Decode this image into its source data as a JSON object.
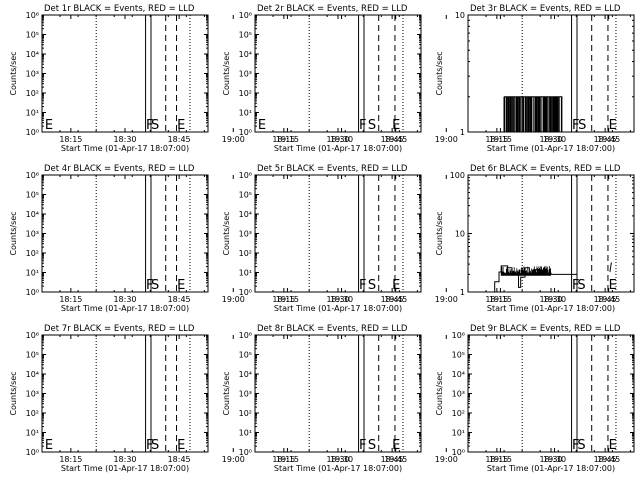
{
  "chart_data": [
    {
      "type": "line",
      "title": "Det 1r BLACK = Events, RED = LLD",
      "ylabel": "Counts/sec",
      "xlabel": "Start Time (01-Apr-17 18:07:00)",
      "yscale": "log",
      "ylim": [
        1,
        1000000
      ],
      "ytick_labels": [
        "10⁰",
        "10¹",
        "10²",
        "10³",
        "10⁴",
        "10⁵",
        "10⁶"
      ],
      "xlim": [
        18.1167,
        18.8833
      ],
      "xtick_labels": [
        "18:15",
        "18:30",
        "18:45",
        "19:00",
        "19:15",
        "19:30",
        "19:45"
      ],
      "vlines": [
        {
          "style": "dotted",
          "x": 18.367
        },
        {
          "style": "solid",
          "x": 18.595
        },
        {
          "style": "solid",
          "x": 18.62
        },
        {
          "style": "dashed",
          "x": 18.688
        },
        {
          "style": "dashed",
          "x": 18.738
        },
        {
          "style": "dotted",
          "x": 18.8
        }
      ],
      "markers": [
        {
          "text": "E",
          "x": 18.13
        },
        {
          "text": "F",
          "x": 18.597
        },
        {
          "text": "S",
          "x": 18.62
        },
        {
          "text": "E",
          "x": 18.741
        }
      ],
      "series": []
    },
    {
      "type": "line",
      "title": "Det 2r BLACK = Events, RED = LLD",
      "ylabel": "Counts/sec",
      "xlabel": "Start Time (01-Apr-17 18:07:00)",
      "yscale": "log",
      "ylim": [
        1,
        1000000
      ],
      "ytick_labels": [
        "10⁰",
        "10¹",
        "10²",
        "10³",
        "10⁴",
        "10⁵",
        "10⁶"
      ],
      "xlim": [
        18.1167,
        18.8833
      ],
      "xtick_labels": [
        "18:15",
        "18:30",
        "18:45",
        "19:00",
        "19:15",
        "19:30",
        "19:45"
      ],
      "vlines": [
        {
          "style": "dotted",
          "x": 18.367
        },
        {
          "style": "solid",
          "x": 18.595
        },
        {
          "style": "solid",
          "x": 18.62
        },
        {
          "style": "dashed",
          "x": 18.688
        },
        {
          "style": "dashed",
          "x": 18.763
        },
        {
          "style": "dotted",
          "x": 18.8
        }
      ],
      "markers": [
        {
          "text": "E",
          "x": 18.13
        },
        {
          "text": "F",
          "x": 18.597
        },
        {
          "text": "S",
          "x": 18.638
        },
        {
          "text": "E",
          "x": 18.75
        }
      ],
      "series": []
    },
    {
      "type": "line",
      "title": "Det 3r BLACK = Events, RED = LLD",
      "ylabel": "Counts/sec",
      "xlabel": "Start Time (01-Apr-17 18:07:00)",
      "yscale": "log",
      "ylim": [
        1,
        10
      ],
      "ytick_labels": [
        "1",
        "10"
      ],
      "xlim": [
        18.1167,
        18.8833
      ],
      "xtick_labels": [
        "18:15",
        "18:30",
        "18:45",
        "19:00",
        "19:15",
        "19:30",
        "19:45"
      ],
      "vlines": [
        {
          "style": "dotted",
          "x": 18.367
        },
        {
          "style": "solid",
          "x": 18.595
        },
        {
          "style": "solid",
          "x": 18.62
        },
        {
          "style": "dashed",
          "x": 18.688
        },
        {
          "style": "dashed",
          "x": 18.763
        },
        {
          "style": "dotted",
          "x": 18.8
        }
      ],
      "markers": [
        {
          "text": "F",
          "x": 18.597
        },
        {
          "text": "S",
          "x": 18.625
        },
        {
          "text": "E",
          "x": 18.766
        }
      ],
      "series": [
        {
          "style": "noise",
          "x_range": [
            18.283,
            18.553
          ],
          "y_low": 1,
          "y_high": 2
        }
      ]
    },
    {
      "type": "line",
      "title": "Det 4r BLACK = Events, RED = LLD",
      "ylabel": "Counts/sec",
      "xlabel": "Start Time (01-Apr-17 18:07:00)",
      "yscale": "log",
      "ylim": [
        1,
        1000000
      ],
      "ytick_labels": [
        "10⁰",
        "10¹",
        "10²",
        "10³",
        "10⁴",
        "10⁵",
        "10⁶"
      ],
      "xlim": [
        18.1167,
        18.8833
      ],
      "xtick_labels": [
        "18:15",
        "18:30",
        "18:45",
        "19:00",
        "19:15",
        "19:30",
        "19:45"
      ],
      "vlines": [
        {
          "style": "dotted",
          "x": 18.367
        },
        {
          "style": "solid",
          "x": 18.595
        },
        {
          "style": "solid",
          "x": 18.62
        },
        {
          "style": "dashed",
          "x": 18.688
        },
        {
          "style": "dashed",
          "x": 18.738
        },
        {
          "style": "dotted",
          "x": 18.8
        }
      ],
      "markers": [
        {
          "text": "F",
          "x": 18.597
        },
        {
          "text": "S",
          "x": 18.62
        },
        {
          "text": "E",
          "x": 18.741
        }
      ],
      "series": []
    },
    {
      "type": "line",
      "title": "Det 5r BLACK = Events, RED = LLD",
      "ylabel": "Counts/sec",
      "xlabel": "Start Time (01-Apr-17 18:07:00)",
      "yscale": "log",
      "ylim": [
        1,
        1000000
      ],
      "ytick_labels": [
        "10⁰",
        "10¹",
        "10²",
        "10³",
        "10⁴",
        "10⁵",
        "10⁶"
      ],
      "xlim": [
        18.1167,
        18.8833
      ],
      "xtick_labels": [
        "18:15",
        "18:30",
        "18:45",
        "19:00",
        "19:15",
        "19:30",
        "19:45"
      ],
      "vlines": [
        {
          "style": "dotted",
          "x": 18.367
        },
        {
          "style": "solid",
          "x": 18.595
        },
        {
          "style": "solid",
          "x": 18.62
        },
        {
          "style": "dashed",
          "x": 18.688
        },
        {
          "style": "dashed",
          "x": 18.763
        },
        {
          "style": "dotted",
          "x": 18.8
        }
      ],
      "markers": [
        {
          "text": "F",
          "x": 18.597
        },
        {
          "text": "S",
          "x": 18.638
        },
        {
          "text": "E",
          "x": 18.75
        }
      ],
      "series": []
    },
    {
      "type": "line",
      "title": "Det 6r BLACK = Events, RED = LLD",
      "ylabel": "Counts/sec",
      "xlabel": "Start Time (01-Apr-17 18:07:00)",
      "yscale": "log",
      "ylim": [
        1,
        100
      ],
      "ytick_labels": [
        "1",
        "10",
        "100"
      ],
      "xlim": [
        18.1167,
        18.8833
      ],
      "xtick_labels": [
        "18:15",
        "18:30",
        "18:45",
        "19:00",
        "19:15",
        "19:30",
        "19:45"
      ],
      "vlines": [
        {
          "style": "dotted",
          "x": 18.367
        },
        {
          "style": "solid",
          "x": 18.595
        },
        {
          "style": "solid",
          "x": 18.62
        },
        {
          "style": "dashed",
          "x": 18.688
        },
        {
          "style": "dashed",
          "x": 18.763
        },
        {
          "style": "dotted",
          "x": 18.8
        }
      ],
      "markers": [
        {
          "text": "F",
          "x": 18.597
        },
        {
          "text": "S",
          "x": 18.622
        },
        {
          "text": "E",
          "x": 18.766
        }
      ],
      "series": [
        {
          "style": "steps",
          "x_range": [
            18.225,
            18.62
          ],
          "points": [
            [
              18.225,
              1
            ],
            [
              18.24,
              1.5
            ],
            [
              18.26,
              2.2
            ],
            [
              18.27,
              2.8
            ],
            [
              18.3,
              2.6
            ],
            [
              18.32,
              2.2
            ],
            [
              18.35,
              1.2
            ],
            [
              18.36,
              1.8
            ],
            [
              18.38,
              2.6
            ],
            [
              18.4,
              2.1
            ],
            [
              18.42,
              2.4
            ],
            [
              18.45,
              2.0
            ],
            [
              18.48,
              2.1
            ],
            [
              18.5,
              2.0
            ],
            [
              18.55,
              2.0
            ],
            [
              18.62,
              2.0
            ]
          ]
        },
        {
          "style": "tick",
          "x": 18.772,
          "y_low": 2.2,
          "y_high": 3.2
        }
      ]
    },
    {
      "type": "line",
      "title": "Det 7r BLACK = Events, RED = LLD",
      "ylabel": "Counts/sec",
      "xlabel": "Start Time (01-Apr-17 18:07:00)",
      "yscale": "log",
      "ylim": [
        1,
        1000000
      ],
      "ytick_labels": [
        "10⁰",
        "10¹",
        "10²",
        "10³",
        "10⁴",
        "10⁵",
        "10⁶"
      ],
      "xlim": [
        18.1167,
        18.8833
      ],
      "xtick_labels": [
        "18:15",
        "18:30",
        "18:45",
        "19:00",
        "19:15",
        "19:30",
        "19:45"
      ],
      "vlines": [
        {
          "style": "dotted",
          "x": 18.367
        },
        {
          "style": "solid",
          "x": 18.595
        },
        {
          "style": "solid",
          "x": 18.62
        },
        {
          "style": "dashed",
          "x": 18.688
        },
        {
          "style": "dashed",
          "x": 18.738
        },
        {
          "style": "dotted",
          "x": 18.8
        }
      ],
      "markers": [
        {
          "text": "E",
          "x": 18.13
        },
        {
          "text": "F",
          "x": 18.597
        },
        {
          "text": "S",
          "x": 18.62
        },
        {
          "text": "E",
          "x": 18.741
        }
      ],
      "series": []
    },
    {
      "type": "line",
      "title": "Det 8r BLACK = Events, RED = LLD",
      "ylabel": "Counts/sec",
      "xlabel": "Start Time (01-Apr-17 18:07:00)",
      "yscale": "log",
      "ylim": [
        1,
        1000000
      ],
      "ytick_labels": [
        "10⁰",
        "10¹",
        "10²",
        "10³",
        "10⁴",
        "10⁵",
        "10⁶"
      ],
      "xlim": [
        18.1167,
        18.8833
      ],
      "xtick_labels": [
        "18:15",
        "18:30",
        "18:45",
        "19:00",
        "19:15",
        "19:30",
        "19:45"
      ],
      "vlines": [
        {
          "style": "dotted",
          "x": 18.367
        },
        {
          "style": "solid",
          "x": 18.595
        },
        {
          "style": "solid",
          "x": 18.62
        },
        {
          "style": "dashed",
          "x": 18.688
        },
        {
          "style": "dashed",
          "x": 18.763
        },
        {
          "style": "dotted",
          "x": 18.8
        }
      ],
      "markers": [
        {
          "text": "F",
          "x": 18.597
        },
        {
          "text": "S",
          "x": 18.638
        },
        {
          "text": "E",
          "x": 18.75
        }
      ],
      "series": []
    },
    {
      "type": "line",
      "title": "Det 9r BLACK = Events, RED = LLD",
      "ylabel": "Counts/sec",
      "xlabel": "Start Time (01-Apr-17 18:07:00)",
      "yscale": "log",
      "ylim": [
        1,
        1000000
      ],
      "ytick_labels": [
        "10⁰",
        "10¹",
        "10²",
        "10³",
        "10⁴",
        "10⁵",
        "10⁶"
      ],
      "xlim": [
        18.1167,
        18.8833
      ],
      "xtick_labels": [
        "18:15",
        "18:30",
        "18:45",
        "19:00",
        "19:15",
        "19:30",
        "19:45"
      ],
      "vlines": [
        {
          "style": "dotted",
          "x": 18.367
        },
        {
          "style": "solid",
          "x": 18.595
        },
        {
          "style": "solid",
          "x": 18.62
        },
        {
          "style": "dashed",
          "x": 18.688
        },
        {
          "style": "dashed",
          "x": 18.763
        },
        {
          "style": "dotted",
          "x": 18.8
        }
      ],
      "markers": [
        {
          "text": "F",
          "x": 18.597
        },
        {
          "text": "S",
          "x": 18.622
        },
        {
          "text": "E",
          "x": 18.766
        }
      ],
      "series": []
    }
  ]
}
